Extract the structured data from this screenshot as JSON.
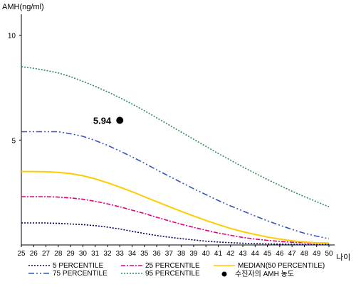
{
  "chart_data": {
    "type": "line",
    "ylabel": "AMH(ng/ml)",
    "xlabel": "나이",
    "xlim": [
      25,
      50
    ],
    "ylim": [
      0,
      11
    ],
    "x_ticks": [
      25,
      26,
      27,
      28,
      29,
      30,
      31,
      32,
      33,
      34,
      35,
      36,
      37,
      38,
      39,
      40,
      41,
      42,
      43,
      44,
      45,
      46,
      47,
      48,
      49,
      50
    ],
    "y_ticks": [
      5,
      10
    ],
    "grid": false,
    "legend_placement": "bottom",
    "x": [
      25,
      26,
      27,
      28,
      29,
      30,
      31,
      32,
      33,
      34,
      35,
      36,
      37,
      38,
      39,
      40,
      41,
      42,
      43,
      44,
      45,
      46,
      47,
      48,
      49,
      50
    ],
    "series": [
      {
        "name": "5 PERCENTILE",
        "color": "#000066",
        "dash": "2,2",
        "values": [
          1.05,
          1.05,
          1.05,
          1.03,
          1.0,
          0.97,
          0.92,
          0.85,
          0.76,
          0.65,
          0.55,
          0.45,
          0.37,
          0.3,
          0.24,
          0.18,
          0.14,
          0.11,
          0.08,
          0.06,
          0.05,
          0.04,
          0.03,
          0.02,
          0.02,
          0.02
        ]
      },
      {
        "name": "25 PERCENTILE",
        "color": "#e6007e",
        "dash": "6,2,2,2",
        "values": [
          2.3,
          2.3,
          2.3,
          2.28,
          2.24,
          2.18,
          2.08,
          1.96,
          1.82,
          1.66,
          1.5,
          1.32,
          1.15,
          0.99,
          0.84,
          0.7,
          0.57,
          0.46,
          0.36,
          0.28,
          0.22,
          0.17,
          0.13,
          0.1,
          0.09,
          0.08
        ]
      },
      {
        "name": "MEDIAN(50 PERCENTILE)",
        "color": "#ffcc00",
        "dash": "",
        "values": [
          3.5,
          3.5,
          3.49,
          3.46,
          3.4,
          3.3,
          3.15,
          2.97,
          2.76,
          2.54,
          2.3,
          2.06,
          1.83,
          1.6,
          1.38,
          1.17,
          0.97,
          0.79,
          0.63,
          0.5,
          0.38,
          0.28,
          0.2,
          0.14,
          0.1,
          0.09
        ]
      },
      {
        "name": "75 PERCENTILE",
        "color": "#3355bb",
        "dash": "8,3,2,3,2,3",
        "values": [
          5.4,
          5.4,
          5.4,
          5.4,
          5.3,
          5.18,
          4.98,
          4.75,
          4.48,
          4.2,
          3.9,
          3.58,
          3.28,
          2.98,
          2.68,
          2.4,
          2.12,
          1.86,
          1.62,
          1.38,
          1.15,
          0.94,
          0.74,
          0.56,
          0.42,
          0.3
        ]
      },
      {
        "name": "95 PERCENTILE",
        "color": "#2e8b57",
        "dash": "2,2",
        "values": [
          8.5,
          8.42,
          8.32,
          8.2,
          8.02,
          7.8,
          7.56,
          7.3,
          7.02,
          6.72,
          6.4,
          6.06,
          5.72,
          5.38,
          5.04,
          4.7,
          4.36,
          4.04,
          3.72,
          3.42,
          3.12,
          2.84,
          2.56,
          2.3,
          2.06,
          1.82
        ]
      }
    ],
    "point": {
      "name": "수진자의 AMH 농도",
      "x": 33,
      "y": 5.94,
      "label": "5.94",
      "color": "#000000"
    }
  }
}
